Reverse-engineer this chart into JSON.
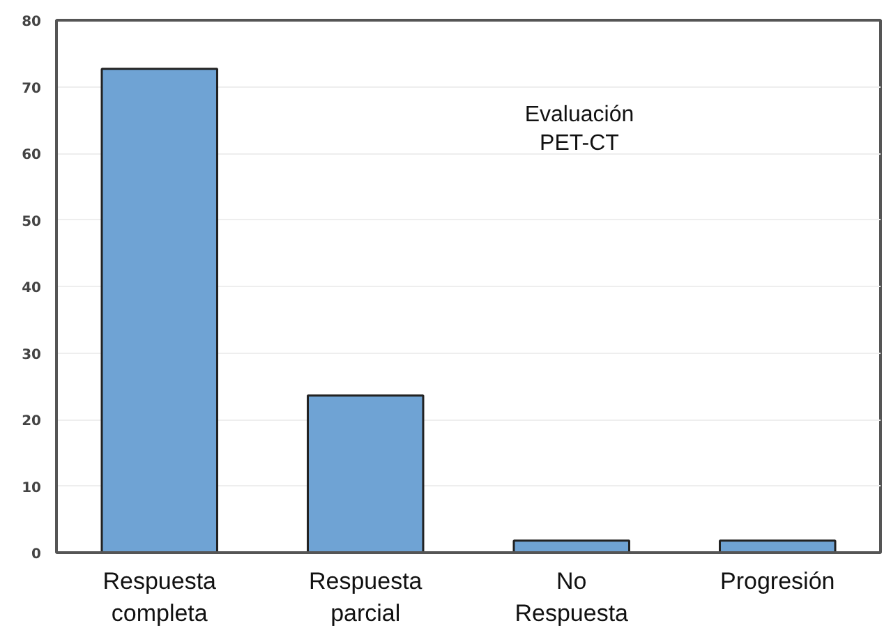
{
  "chart_data": {
    "type": "bar",
    "categories": [
      "Respuesta\ncompleta",
      "Respuesta\nparcial",
      "No\nRespuesta",
      "Progresión"
    ],
    "values": [
      72.7,
      23.6,
      1.8,
      1.8
    ],
    "color": "#6fa3d4",
    "ylim": [
      0,
      80
    ],
    "yticks": [
      0,
      10,
      20,
      30,
      40,
      50,
      60,
      70,
      80
    ],
    "grid": "y",
    "annotations": [
      "Evaluación\nPET-CT"
    ]
  }
}
